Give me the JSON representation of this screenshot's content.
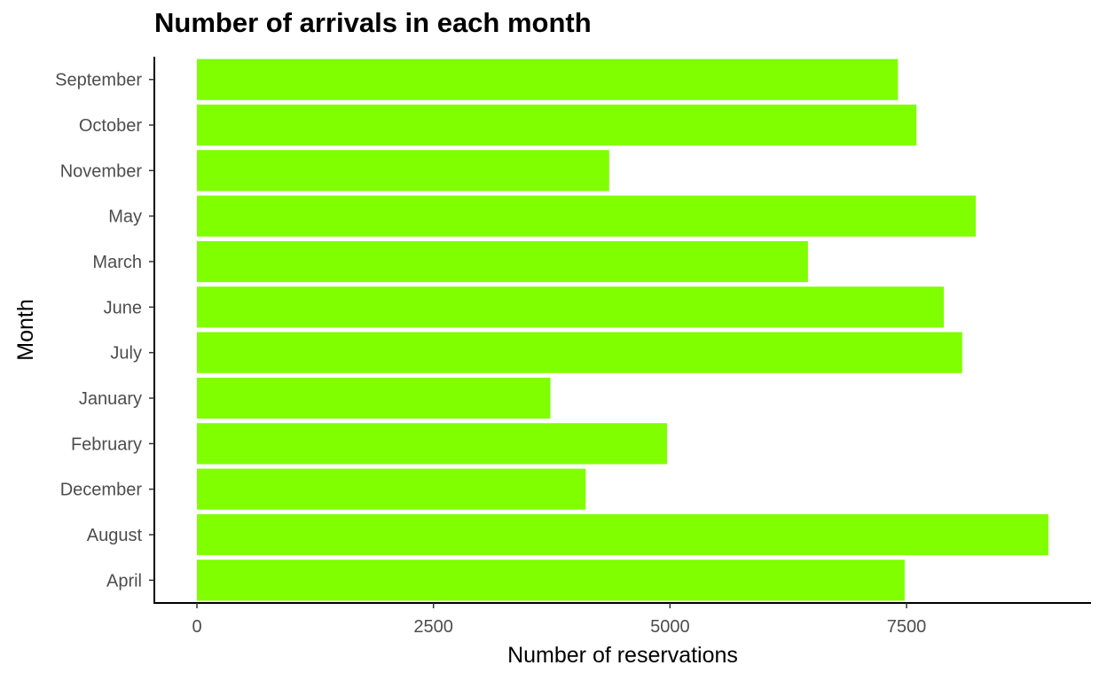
{
  "chart_data": {
    "type": "bar",
    "orientation": "horizontal",
    "title": "Number of arrivals in each month",
    "xlabel": "Number of reservations",
    "ylabel": "Month",
    "categories": [
      "September",
      "October",
      "November",
      "May",
      "March",
      "June",
      "July",
      "January",
      "February",
      "December",
      "August",
      "April"
    ],
    "values": [
      7409,
      7605,
      4357,
      8232,
      6458,
      7894,
      8088,
      3736,
      4969,
      4109,
      8999,
      7480
    ],
    "xlim": [
      -450,
      9450
    ],
    "xticks": [
      0,
      2500,
      5000,
      7500
    ],
    "xtick_labels": [
      "0",
      "2500",
      "5000",
      "7500"
    ],
    "grid": false,
    "bar_color": "#7FFF00"
  }
}
